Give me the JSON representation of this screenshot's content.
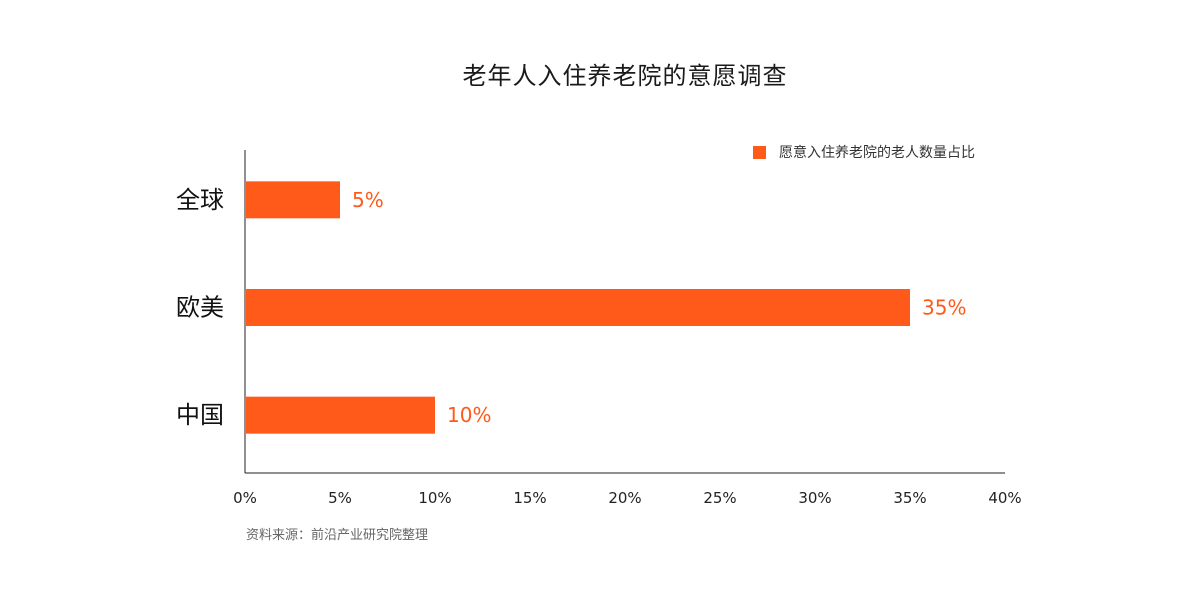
{
  "chart_data": {
    "type": "bar",
    "orientation": "horizontal",
    "title": "老年人入住养老院的意愿调查",
    "categories": [
      "全球",
      "欧美",
      "中国"
    ],
    "series": [
      {
        "name": "愿意入住养老院的老人数量占比",
        "values": [
          5,
          35,
          10
        ],
        "data_labels": [
          "5%",
          "35%",
          "10%"
        ]
      }
    ],
    "xlim": [
      0,
      40
    ],
    "x_ticks": [
      0,
      5,
      10,
      15,
      20,
      25,
      30,
      35,
      40
    ],
    "x_tick_labels": [
      "0%",
      "5%",
      "10%",
      "15%",
      "20%",
      "25%",
      "30%",
      "35%",
      "40%"
    ],
    "xlabel": "",
    "ylabel": "",
    "grid": false,
    "legend_position": "top-right",
    "bar_color": "#FF5A1A",
    "source": "资料来源：前沿产业研究院整理"
  }
}
